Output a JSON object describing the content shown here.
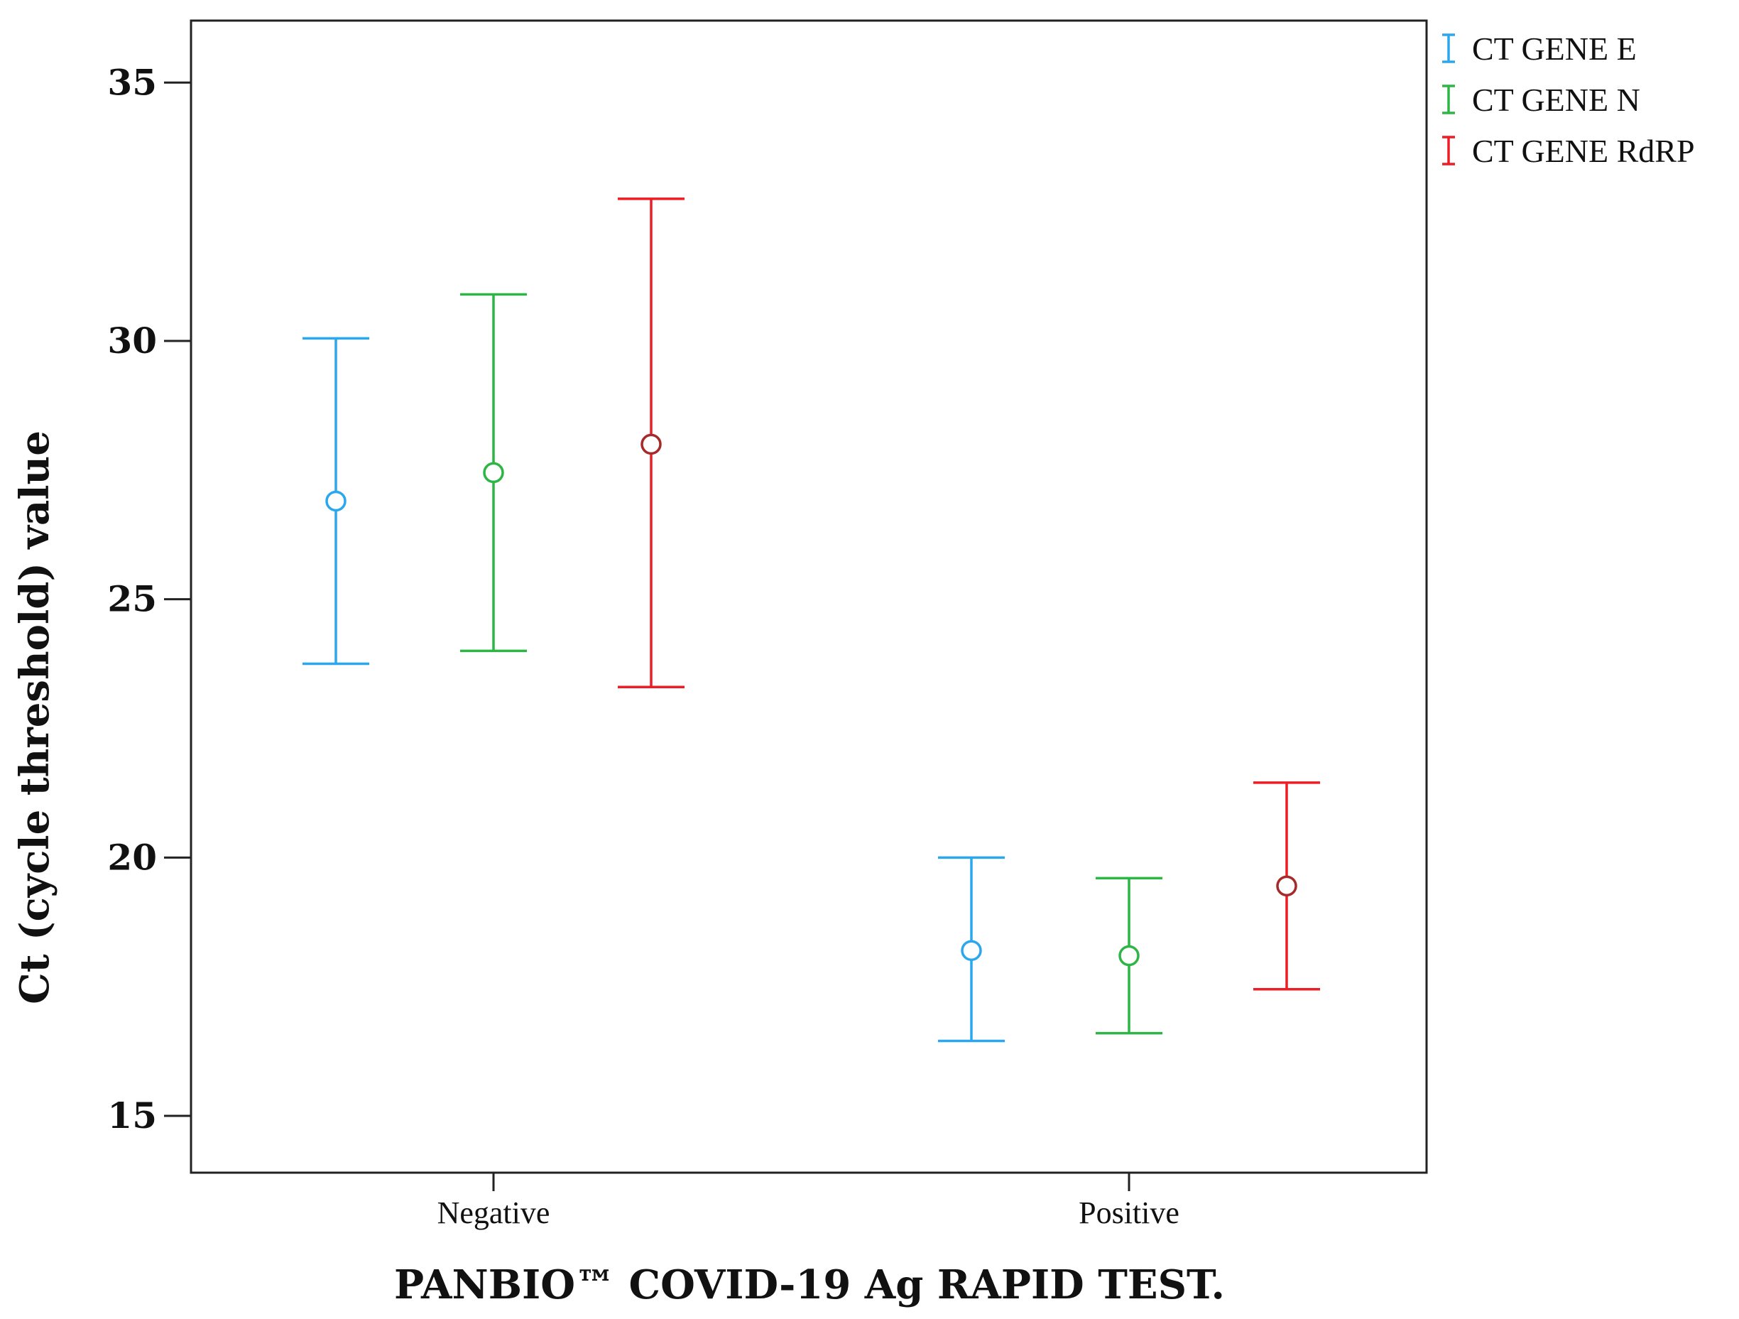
{
  "chart_data": {
    "type": "errorbar",
    "title": "",
    "xlabel": "PANBIO™ COVID-19 Ag RAPID TEST.",
    "ylabel": "Ct (cycle threshold) value",
    "categories": [
      "Negative",
      "Positive"
    ],
    "ylim": [
      13.9,
      36.2
    ],
    "yticks": [
      15,
      20,
      25,
      30,
      35
    ],
    "grid": false,
    "legend_position": "right-top",
    "series": [
      {
        "name": "CT GENE E",
        "color": "#2aa7ee",
        "marker_color": "#2aa7ee",
        "mean": [
          26.9,
          18.2
        ],
        "lower": [
          23.75,
          16.45
        ],
        "upper": [
          30.05,
          20.0
        ]
      },
      {
        "name": "CT GENE N",
        "color": "#2db545",
        "marker_color": "#2db545",
        "mean": [
          27.45,
          18.1
        ],
        "lower": [
          24.0,
          16.6
        ],
        "upper": [
          30.9,
          19.6
        ]
      },
      {
        "name": "CT GENE RdRP",
        "color": "#ee1c25",
        "marker_color": "#a52a2a",
        "mean": [
          28.0,
          19.45
        ],
        "lower": [
          23.3,
          17.45
        ],
        "upper": [
          32.75,
          21.45
        ]
      }
    ]
  }
}
